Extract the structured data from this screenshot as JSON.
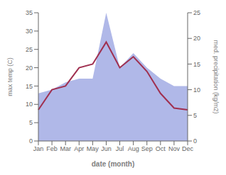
{
  "chart_data": {
    "type": "line",
    "xlabel": "date (month)",
    "ylabel": "max temp (C)",
    "y2label": "med. precipitation (kg/m2)",
    "categories": [
      "Jan",
      "Feb",
      "Mar",
      "Apr",
      "May",
      "Jun",
      "Jul",
      "Aug",
      "Sep",
      "Oct",
      "Nov",
      "Dec"
    ],
    "series": [
      {
        "type": "area",
        "color": "#b0b8e8",
        "values": [
          13.0,
          14.0,
          16.0,
          17.0,
          17.0,
          35.0,
          20.0,
          24.0,
          20.0,
          17.0,
          15.0,
          15.0
        ]
      },
      {
        "type": "line",
        "color": "#a03050",
        "values": [
          8.5,
          14.0,
          15.0,
          20.0,
          21.0,
          27.0,
          20.0,
          23.0,
          19.0,
          13.0,
          9.0,
          8.5
        ]
      }
    ],
    "ylim": [
      0,
      35
    ],
    "yticks": [
      0,
      5,
      10,
      15,
      20,
      25,
      30,
      35
    ],
    "y2lim": [
      0,
      25
    ],
    "y2ticks": [
      0,
      5,
      10,
      15,
      20,
      25
    ],
    "grid": false
  }
}
